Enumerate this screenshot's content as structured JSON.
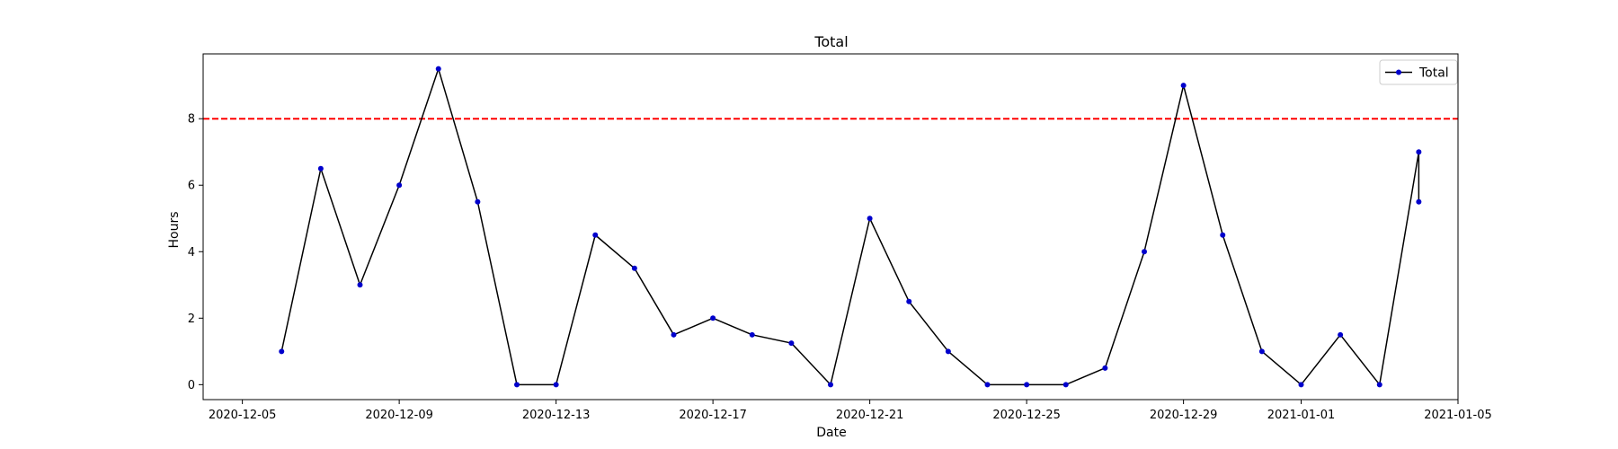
{
  "chart_data": {
    "type": "line",
    "title": "Total",
    "xlabel": "Date",
    "ylabel": "Hours",
    "xlim": [
      "2020-12-04",
      "2021-01-05"
    ],
    "ylim": [
      -0.45,
      9.95
    ],
    "x_ticks": [
      "2020-12-05",
      "2020-12-09",
      "2020-12-13",
      "2020-12-17",
      "2020-12-21",
      "2020-12-25",
      "2020-12-29",
      "2021-01-01",
      "2021-01-05"
    ],
    "y_ticks": [
      0,
      2,
      4,
      6,
      8
    ],
    "grid": false,
    "legend_position": "top-right",
    "reference_line": {
      "y": 8,
      "color": "#ff0000",
      "style": "dashed"
    },
    "series": [
      {
        "name": "Total",
        "line_color": "#000000",
        "marker_color": "#0000cc",
        "points": [
          {
            "x": "2020-12-06",
            "y": 1
          },
          {
            "x": "2020-12-07",
            "y": 6.5
          },
          {
            "x": "2020-12-08",
            "y": 3
          },
          {
            "x": "2020-12-09",
            "y": 6
          },
          {
            "x": "2020-12-10",
            "y": 9.5
          },
          {
            "x": "2020-12-11",
            "y": 5.5
          },
          {
            "x": "2020-12-12",
            "y": 0
          },
          {
            "x": "2020-12-13",
            "y": 0
          },
          {
            "x": "2020-12-14",
            "y": 4.5
          },
          {
            "x": "2020-12-15",
            "y": 3.5
          },
          {
            "x": "2020-12-16",
            "y": 1.5
          },
          {
            "x": "2020-12-17",
            "y": 2
          },
          {
            "x": "2020-12-18",
            "y": 1.5
          },
          {
            "x": "2020-12-19",
            "y": 1.25
          },
          {
            "x": "2020-12-20",
            "y": 0
          },
          {
            "x": "2020-12-21",
            "y": 5
          },
          {
            "x": "2020-12-22",
            "y": 2.5
          },
          {
            "x": "2020-12-23",
            "y": 1
          },
          {
            "x": "2020-12-24",
            "y": 0
          },
          {
            "x": "2020-12-25",
            "y": 0
          },
          {
            "x": "2020-12-26",
            "y": 0
          },
          {
            "x": "2020-12-27",
            "y": 0.5
          },
          {
            "x": "2020-12-28",
            "y": 4
          },
          {
            "x": "2020-12-29",
            "y": 9
          },
          {
            "x": "2020-12-30",
            "y": 4.5
          },
          {
            "x": "2020-12-31",
            "y": 1
          },
          {
            "x": "2021-01-01",
            "y": 0
          },
          {
            "x": "2021-01-02",
            "y": 1.5
          },
          {
            "x": "2021-01-03",
            "y": 0
          },
          {
            "x": "2021-01-04",
            "y": 7
          },
          {
            "x": "2021-01-04",
            "y": 5.5
          }
        ]
      }
    ]
  }
}
